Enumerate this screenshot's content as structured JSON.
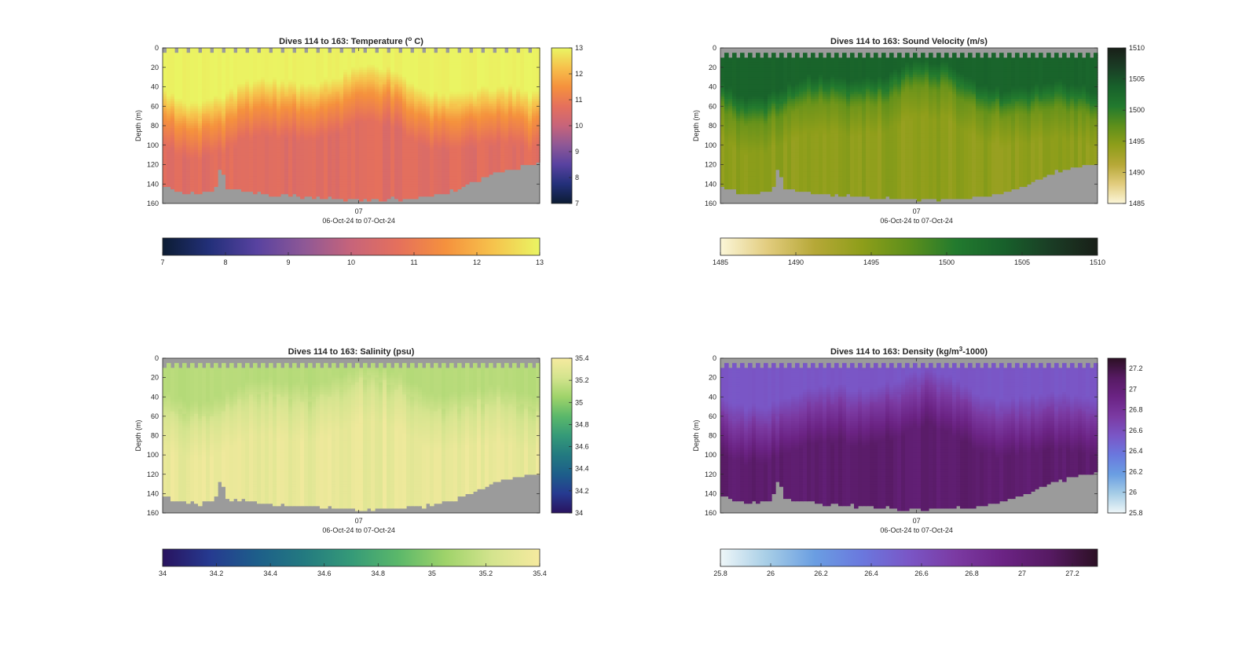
{
  "chart_data": [
    {
      "type": "heatmap",
      "title": "Dives 114 to 163: Temperature (",
      "title_sup": "o",
      "title_suffix": " C)",
      "ylabel": "Depth (m)",
      "xlabel": "06-Oct-24 to 07-Oct-24",
      "x_ticks": [
        "07"
      ],
      "y_ticks": [
        "0",
        "20",
        "40",
        "60",
        "80",
        "100",
        "120",
        "140",
        "160"
      ],
      "ylim": [
        0,
        160
      ],
      "y_reversed": true,
      "dives": [
        114,
        163
      ],
      "colorbar_range": [
        7,
        13
      ],
      "colorbar_ticks": [
        "7",
        "8",
        "9",
        "10",
        "11",
        "12",
        "13"
      ],
      "colormap": [
        "#0c1c33",
        "#23307a",
        "#5842a0",
        "#8e5896",
        "#c7647a",
        "#e5705c",
        "#f5913d",
        "#f6c24c",
        "#eaf563"
      ],
      "surface_value": 12.95,
      "deep_value": 10.6,
      "mix_base_depth": 50,
      "thermocline_value": 11.5,
      "no_data_color": "#9b9b9b"
    },
    {
      "type": "heatmap",
      "title": "Dives 114 to 163: Sound Velocity (m/s)",
      "ylabel": "Depth (m)",
      "xlabel": "06-Oct-24 to 07-Oct-24",
      "x_ticks": [
        "07"
      ],
      "y_ticks": [
        "0",
        "20",
        "40",
        "60",
        "80",
        "100",
        "120",
        "140",
        "160"
      ],
      "ylim": [
        0,
        160
      ],
      "y_reversed": true,
      "dives": [
        114,
        163
      ],
      "colorbar_range": [
        1485,
        1510
      ],
      "colorbar_ticks": [
        "1485",
        "1490",
        "1495",
        "1500",
        "1505",
        "1510"
      ],
      "colormap": [
        "#fbf6d8",
        "#e2cc7e",
        "#b6a837",
        "#8e9e1a",
        "#5d8f1b",
        "#227a2e",
        "#18612b",
        "#1a3d25",
        "#191f18"
      ],
      "surface_value": 1503.4,
      "deep_value": 1494.3,
      "mix_base_depth": 45,
      "thermocline_value": 1496.5,
      "no_data_color": "#9b9b9b"
    },
    {
      "type": "heatmap",
      "title": "Dives 114 to 163: Salinity (psu)",
      "ylabel": "Depth (m)",
      "xlabel": "06-Oct-24 to 07-Oct-24",
      "x_ticks": [
        "07"
      ],
      "y_ticks": [
        "0",
        "20",
        "40",
        "60",
        "80",
        "100",
        "120",
        "140",
        "160"
      ],
      "ylim": [
        0,
        160
      ],
      "y_reversed": true,
      "dives": [
        114,
        163
      ],
      "colorbar_range": [
        34,
        35.4
      ],
      "colorbar_ticks": [
        "34",
        "34.2",
        "34.4",
        "34.6",
        "34.8",
        "35",
        "35.2",
        "35.4"
      ],
      "colormap": [
        "#29135f",
        "#263a90",
        "#1d5e8a",
        "#237a80",
        "#359a78",
        "#5bb86a",
        "#9fd36a",
        "#d4e48e",
        "#f6ea9f"
      ],
      "surface_value": 35.13,
      "deep_value": 35.33,
      "mix_base_depth": 40,
      "thermocline_value": 35.25,
      "no_data_color": "#9b9b9b"
    },
    {
      "type": "heatmap",
      "title": "Dives 114 to 163: Density (kg/m",
      "title_sup": "3",
      "title_suffix": "-1000)",
      "ylabel": "Depth (m)",
      "xlabel": "06-Oct-24 to 07-Oct-24",
      "x_ticks": [
        "07"
      ],
      "y_ticks": [
        "0",
        "20",
        "40",
        "60",
        "80",
        "100",
        "120",
        "140",
        "160"
      ],
      "ylim": [
        0,
        160
      ],
      "y_reversed": true,
      "dives": [
        114,
        163
      ],
      "colorbar_range": [
        25.8,
        27.3
      ],
      "colorbar_ticks": [
        "25.8",
        "26",
        "26.2",
        "26.4",
        "26.6",
        "26.8",
        "27",
        "27.2"
      ],
      "colormap": [
        "#eef6f8",
        "#a6cde6",
        "#6a9ee2",
        "#6a78de",
        "#7a56c6",
        "#7b3aa2",
        "#6b2384",
        "#561a62",
        "#2c1024"
      ],
      "surface_value": 26.55,
      "deep_value": 27.05,
      "mix_base_depth": 45,
      "thermocline_value": 26.8,
      "no_data_color": "#9b9b9b"
    }
  ]
}
